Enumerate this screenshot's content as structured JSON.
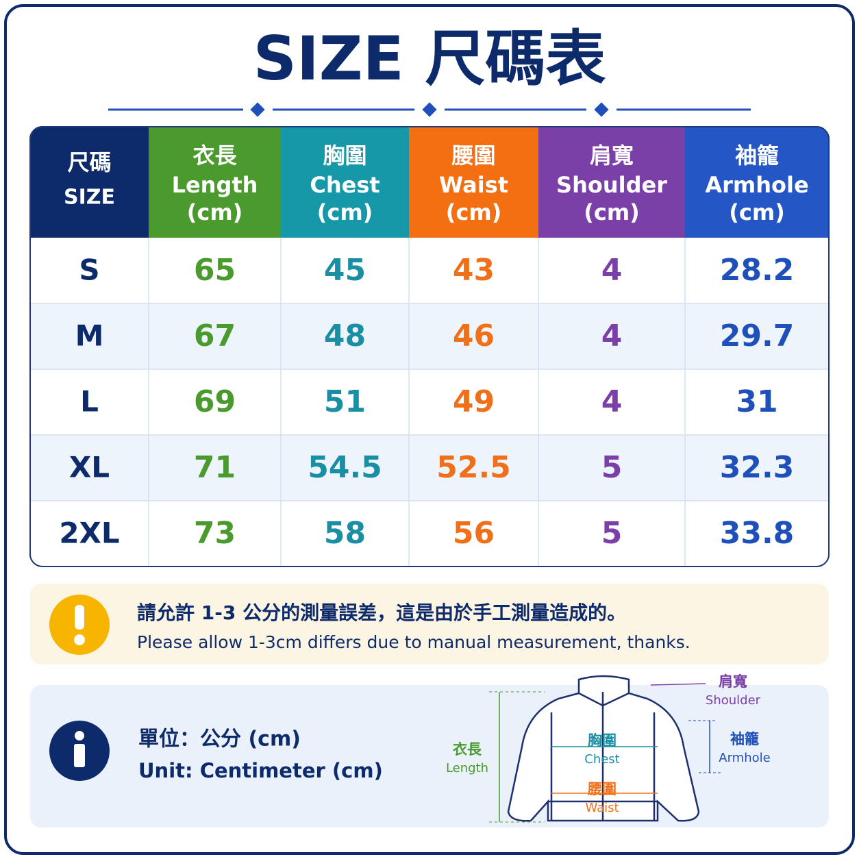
{
  "title": "SIZE 尺碼表",
  "table": {
    "header": [
      [
        "尺碼",
        "SIZE"
      ],
      [
        "衣長",
        "Length",
        "(cm)"
      ],
      [
        "胸圍",
        "Chest",
        "(cm)"
      ],
      [
        "腰圍",
        "Waist",
        "(cm)"
      ],
      [
        "肩寬",
        "Shoulder",
        "(cm)"
      ],
      [
        "袖籠",
        "Armhole",
        "(cm)"
      ]
    ],
    "rows": [
      [
        "S",
        65,
        45,
        43,
        4,
        28.2
      ],
      [
        "M",
        67,
        48,
        46,
        4,
        29.7
      ],
      [
        "L",
        69,
        51,
        49,
        4,
        31
      ],
      [
        "XL",
        71,
        54.5,
        52.5,
        5,
        32.3
      ],
      [
        "2XL",
        73,
        58,
        56,
        5,
        33.8
      ]
    ]
  },
  "note": {
    "zh": "請允許 1-3 公分的測量誤差，這是由於手工測量造成的。",
    "en": "Please allow 1-3cm differs due to manual measurement, thanks."
  },
  "unit": {
    "zh": "單位：公分 (cm)",
    "en": "Unit: Centimeter (cm)"
  },
  "diagram": {
    "length": [
      "衣長",
      "Length"
    ],
    "chest": [
      "胸圍",
      "Chest"
    ],
    "waist": [
      "腰圍",
      "Waist"
    ],
    "shoulder": [
      "肩寬",
      "Shoulder"
    ],
    "armhole": [
      "袖籠",
      "Armhole"
    ]
  }
}
